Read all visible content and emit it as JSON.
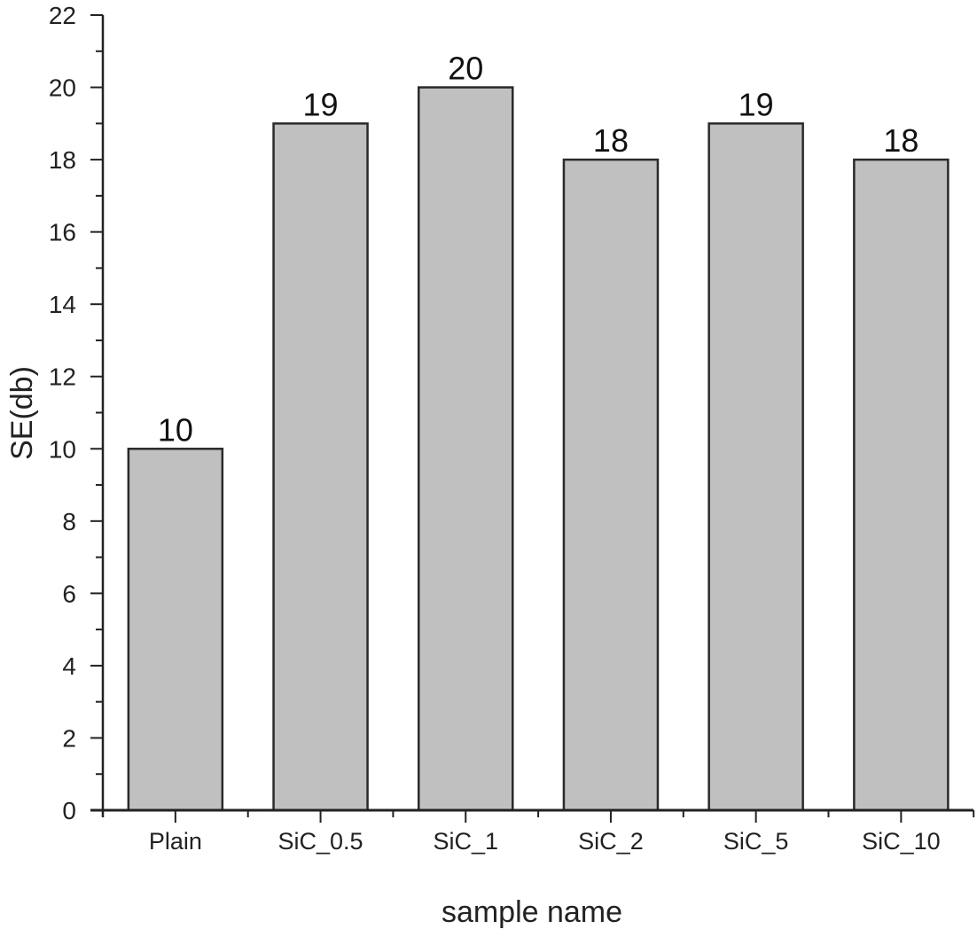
{
  "chart_data": {
    "type": "bar",
    "title": "",
    "xlabel": "sample name",
    "ylabel": "SE(db)",
    "categories": [
      "Plain",
      "SiC_0.5",
      "SiC_1",
      "SiC_2",
      "SiC_5",
      "SiC_10"
    ],
    "values": [
      10,
      19,
      20,
      18,
      19,
      18
    ],
    "data_labels": [
      "10",
      "19",
      "20",
      "18",
      "19",
      "18"
    ],
    "ylim": [
      0,
      22
    ],
    "yticks": [
      0,
      2,
      4,
      6,
      8,
      10,
      12,
      14,
      16,
      18,
      20,
      22
    ],
    "grid": false,
    "legend": "none",
    "colors": {
      "bar_fill": "#c0c0c0",
      "bar_stroke": "#2a2a2a",
      "axis": "#222222"
    }
  }
}
